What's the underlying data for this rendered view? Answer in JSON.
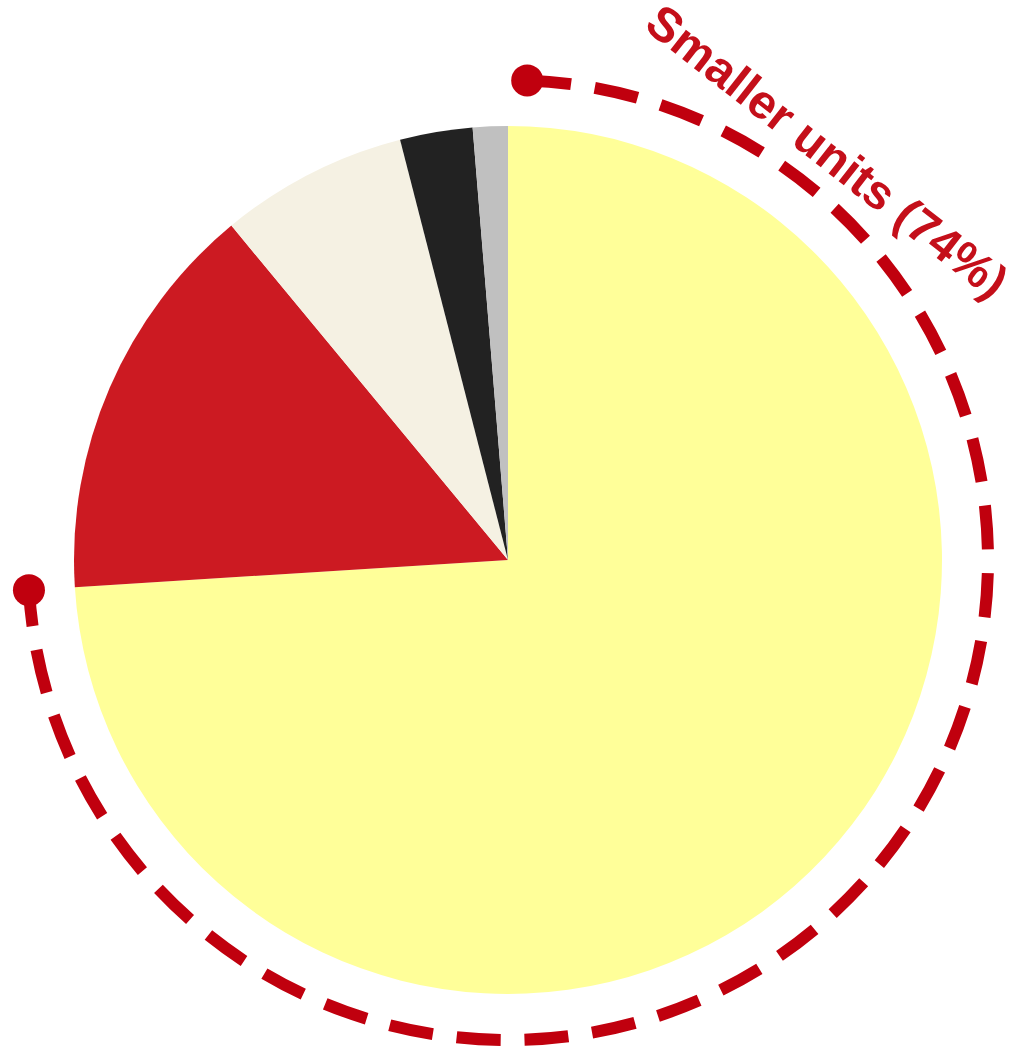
{
  "chart_data": {
    "type": "pie",
    "categories": [
      null,
      null,
      null,
      null,
      null
    ],
    "values": [
      74,
      15,
      7,
      2.7,
      1.3
    ],
    "colors": [
      "#ffff99",
      "#cc1a22",
      "#f5f1e3",
      "#222222",
      "#c0c0c0"
    ],
    "annotations": [
      "Smaller units (74%)"
    ]
  }
}
